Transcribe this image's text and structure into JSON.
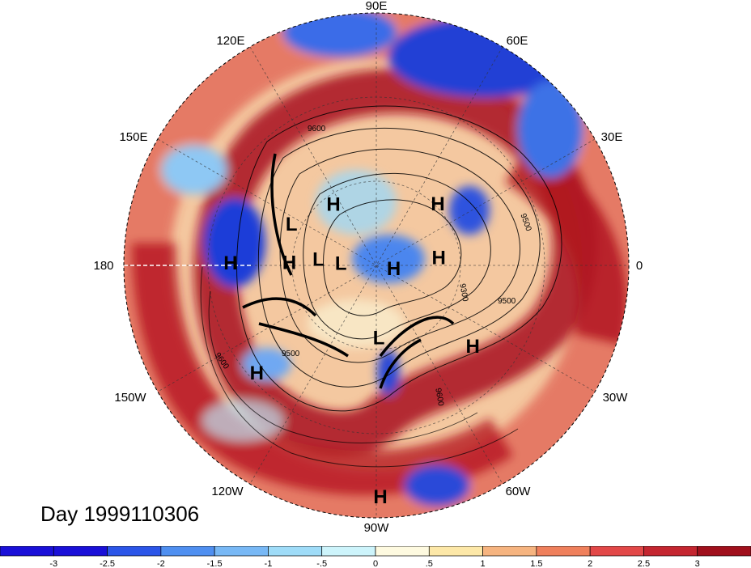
{
  "title": "Day 1999110306",
  "longitude_labels": [
    {
      "id": "lon-90e",
      "text": "90E"
    },
    {
      "id": "lon-60e",
      "text": "60E"
    },
    {
      "id": "lon-30e",
      "text": "30E"
    },
    {
      "id": "lon-0",
      "text": "0"
    },
    {
      "id": "lon-30w",
      "text": "30W"
    },
    {
      "id": "lon-60w",
      "text": "60W"
    },
    {
      "id": "lon-90w",
      "text": "90W"
    },
    {
      "id": "lon-120w",
      "text": "120W"
    },
    {
      "id": "lon-150w",
      "text": "150W"
    },
    {
      "id": "lon-180",
      "text": "180"
    },
    {
      "id": "lon-150e",
      "text": "150E"
    },
    {
      "id": "lon-120e",
      "text": "120E"
    }
  ],
  "pressure_markers": [
    {
      "type": "H",
      "lat": 57,
      "lon": 125
    },
    {
      "type": "L",
      "lat": 49,
      "lon": 154
    },
    {
      "type": "H",
      "lat": 30,
      "lon": 179
    },
    {
      "type": "H",
      "lat": 52,
      "lon": 178
    },
    {
      "type": "L",
      "lat": 64,
      "lon": 174
    },
    {
      "type": "L",
      "lat": 74,
      "lon": 177
    },
    {
      "type": "H",
      "lat": 82,
      "lon": -10
    },
    {
      "type": "H",
      "lat": 62,
      "lon": 7
    },
    {
      "type": "H",
      "lat": 52,
      "lon": 45
    },
    {
      "type": "H",
      "lat": 37,
      "lon": -40
    },
    {
      "type": "L",
      "lat": 58,
      "lon": -88
    },
    {
      "type": "H",
      "lat": 25,
      "lon": -138
    },
    {
      "type": "H",
      "lat": 5,
      "lon": -89
    }
  ],
  "contour_labels": [
    "9600",
    "9500",
    "9300",
    "9500",
    "9500",
    "9600",
    "9600"
  ],
  "colorbar": {
    "labels": [
      "-3",
      "-2.5",
      "-2",
      "-1.5",
      "-1",
      "-.5",
      "0",
      ".5",
      "1",
      "1.5",
      "2",
      "2.5",
      "3"
    ],
    "colors": [
      "#1a10d8",
      "#2b55e8",
      "#4f8ff0",
      "#78b8f5",
      "#9fdcf8",
      "#cdf4fb",
      "#fefae0",
      "#fde8a8",
      "#f6b480",
      "#ef805c",
      "#e24848",
      "#c42630",
      "#a0101c"
    ]
  }
}
